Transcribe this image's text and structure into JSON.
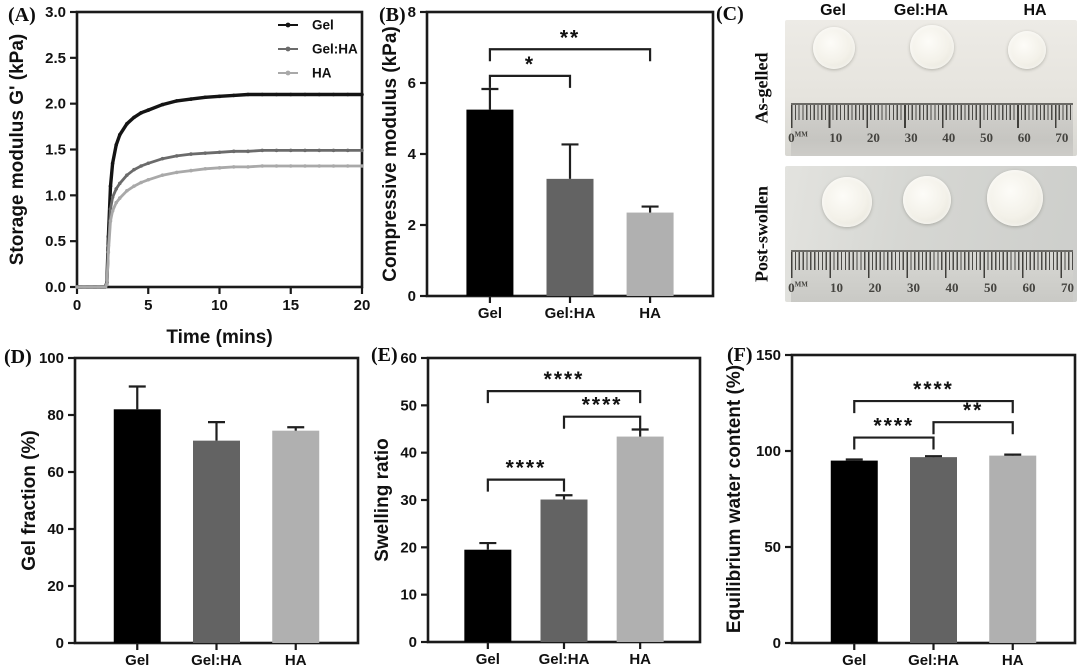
{
  "panels": {
    "A": "(A)",
    "B": "(B)",
    "C": "(C)",
    "D": "(D)",
    "E": "(E)",
    "F": "(F)"
  },
  "chart_data": [
    {
      "id": "A",
      "type": "line",
      "ylabel": "Storage modulus G' (kPa)",
      "xlabel": "Time (mins)",
      "xlim": [
        0,
        20
      ],
      "ylim": [
        0,
        3.0
      ],
      "grid": false,
      "frame": true,
      "xtick_vals": [
        0,
        5,
        10,
        15,
        20
      ],
      "xtick_labels": [
        "0",
        "5",
        "10",
        "15",
        "20"
      ],
      "ytick_vals": [
        0,
        0.5,
        1.0,
        1.5,
        2.0,
        2.5,
        3.0
      ],
      "ytick_labels": [
        "0.0",
        "0.5",
        "1.0",
        "1.5",
        "2.0",
        "2.5",
        "3.0"
      ],
      "legend_position": "top-right",
      "x": [
        0,
        0.5,
        1,
        1.5,
        2,
        2.1,
        2.2,
        2.35,
        2.5,
        2.75,
        3,
        3.5,
        4,
        4.5,
        5,
        6,
        7,
        8,
        9,
        10,
        11,
        12,
        13,
        14,
        15,
        16,
        17,
        18,
        19,
        20
      ],
      "series": [
        {
          "name": "Gel",
          "color": "#141414",
          "y": [
            0,
            0,
            0,
            0,
            0,
            0.05,
            0.55,
            1.1,
            1.35,
            1.55,
            1.66,
            1.78,
            1.85,
            1.9,
            1.93,
            1.99,
            2.03,
            2.05,
            2.07,
            2.08,
            2.09,
            2.1,
            2.1,
            2.1,
            2.1,
            2.1,
            2.1,
            2.1,
            2.1,
            2.1
          ]
        },
        {
          "name": "Gel:HA",
          "color": "#6b6b6b",
          "y": [
            0,
            0,
            0,
            0,
            0,
            0.04,
            0.45,
            0.85,
            0.98,
            1.07,
            1.13,
            1.22,
            1.28,
            1.32,
            1.35,
            1.4,
            1.43,
            1.45,
            1.46,
            1.47,
            1.48,
            1.48,
            1.49,
            1.49,
            1.49,
            1.49,
            1.49,
            1.49,
            1.49,
            1.49
          ]
        },
        {
          "name": "HA",
          "color": "#a9a9a9",
          "y": [
            0,
            0,
            0,
            0,
            0,
            0.03,
            0.38,
            0.72,
            0.83,
            0.92,
            0.97,
            1.05,
            1.1,
            1.14,
            1.17,
            1.22,
            1.25,
            1.27,
            1.29,
            1.3,
            1.31,
            1.31,
            1.32,
            1.32,
            1.32,
            1.32,
            1.32,
            1.32,
            1.32,
            1.32
          ]
        }
      ]
    },
    {
      "id": "B",
      "type": "bar",
      "ylabel": "Compressive modulus (kPa)",
      "ylim": [
        0,
        8
      ],
      "ytick_vals": [
        0,
        2,
        4,
        6,
        8
      ],
      "ytick_labels": [
        "0",
        "2",
        "4",
        "6",
        "8"
      ],
      "categories": [
        "Gel",
        "Gel:HA",
        "HA"
      ],
      "values": [
        5.25,
        3.3,
        2.35
      ],
      "errors": [
        0.58,
        0.97,
        0.17
      ],
      "bar_colors": [
        "#000000",
        "#636363",
        "#b0b0b0"
      ],
      "significance": [
        {
          "from": 0,
          "to": 1,
          "label": "*",
          "y": 6.2
        },
        {
          "from": 0,
          "to": 2,
          "label": "**",
          "y": 6.95
        }
      ]
    },
    {
      "id": "D",
      "type": "bar",
      "ylabel": "Gel fraction (%)",
      "ylim": [
        0,
        100
      ],
      "ytick_vals": [
        0,
        20,
        40,
        60,
        80,
        100
      ],
      "ytick_labels": [
        "0",
        "20",
        "40",
        "60",
        "80",
        "100"
      ],
      "categories": [
        "Gel",
        "Gel:HA",
        "HA"
      ],
      "values": [
        82,
        71,
        74.5
      ],
      "errors": [
        8,
        6.5,
        1.2
      ],
      "bar_colors": [
        "#000000",
        "#636363",
        "#b0b0b0"
      ],
      "significance": []
    },
    {
      "id": "E",
      "type": "bar",
      "ylabel": "Swelling ratio",
      "ylim": [
        0,
        60
      ],
      "ytick_vals": [
        0,
        10,
        20,
        30,
        40,
        50,
        60
      ],
      "ytick_labels": [
        "0",
        "10",
        "20",
        "30",
        "40",
        "50",
        "60"
      ],
      "categories": [
        "Gel",
        "Gel:HA",
        "HA"
      ],
      "values": [
        19.5,
        30.1,
        43.4
      ],
      "errors": [
        1.4,
        0.9,
        1.5
      ],
      "bar_colors": [
        "#000000",
        "#636363",
        "#b0b0b0"
      ],
      "significance": [
        {
          "from": 0,
          "to": 1,
          "label": "****",
          "y": 34.3
        },
        {
          "from": 1,
          "to": 2,
          "label": "****",
          "y": 47.6
        },
        {
          "from": 0,
          "to": 2,
          "label": "****",
          "y": 53
        }
      ]
    },
    {
      "id": "F",
      "type": "bar",
      "ylabel": "Equilibrium water content (%)",
      "ylim": [
        0,
        150
      ],
      "ytick_vals": [
        0,
        50,
        100,
        150
      ],
      "ytick_labels": [
        "0",
        "50",
        "100",
        "150"
      ],
      "categories": [
        "Gel",
        "Gel:HA",
        "HA"
      ],
      "values": [
        95,
        96.8,
        97.6
      ],
      "errors": [
        0.6,
        0.5,
        0.5
      ],
      "bar_colors": [
        "#000000",
        "#636363",
        "#b0b0b0"
      ],
      "significance": [
        {
          "from": 0,
          "to": 1,
          "label": "****",
          "y": 107
        },
        {
          "from": 1,
          "to": 2,
          "label": "**",
          "y": 115
        },
        {
          "from": 0,
          "to": 2,
          "label": "****",
          "y": 126
        }
      ]
    }
  ],
  "photos": {
    "column_labels": [
      "Gel",
      "Gel:HA",
      "HA"
    ],
    "rows": [
      {
        "side_label": "As-gelled",
        "ruler_numbers": [
          "0",
          "10",
          "20",
          "30",
          "40",
          "50",
          "60",
          "70"
        ],
        "ruler_unit": "MM"
      },
      {
        "side_label": "Post-swollen",
        "ruler_numbers": [
          "0",
          "10",
          "20",
          "30",
          "40",
          "50",
          "60",
          "70"
        ],
        "ruler_unit": "MM"
      }
    ]
  }
}
